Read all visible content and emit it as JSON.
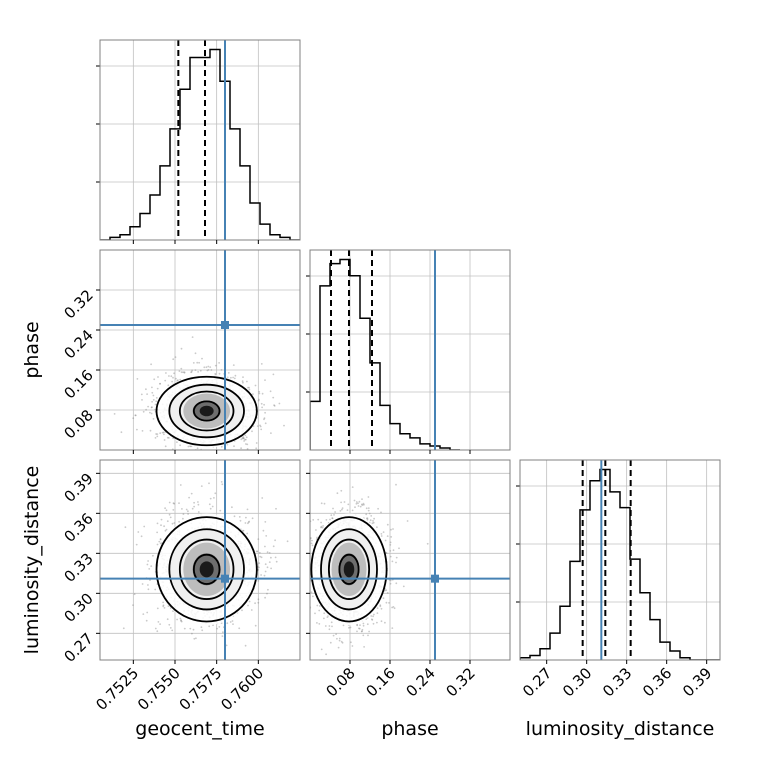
{
  "chart_data": {
    "type": "corner",
    "title": "",
    "parameters": [
      {
        "name": "geocent_time",
        "label": "geocent_time",
        "range": [
          0.7505,
          0.7625
        ],
        "ticks": [
          0.7525,
          0.755,
          0.7575,
          0.76
        ],
        "tick_labels": [
          "0.7525",
          "0.7550",
          "0.7575",
          "0.7600"
        ],
        "truth": 0.758,
        "quantiles": [
          0.7552,
          0.7568,
          0.758
        ],
        "histogram": {
          "edges": [
            0.7505,
            0.7511,
            0.7517,
            0.7523,
            0.7529,
            0.7535,
            0.7541,
            0.7547,
            0.7553,
            0.7559,
            0.7565,
            0.7571,
            0.7577,
            0.7583,
            0.7589,
            0.7595,
            0.7601,
            0.7607,
            0.7613,
            0.7619,
            0.7625
          ],
          "counts": [
            0,
            1,
            2,
            5,
            10,
            17,
            28,
            42,
            57,
            69,
            69,
            72,
            60,
            42,
            28,
            14,
            6,
            2,
            1,
            0
          ]
        }
      },
      {
        "name": "phase",
        "label": "phase",
        "range": [
          0,
          0.4
        ],
        "ticks": [
          0.08,
          0.16,
          0.24,
          0.32
        ],
        "tick_labels": [
          "0.08",
          "0.16",
          "0.24",
          "0.32"
        ],
        "truth": 0.25,
        "quantiles": [
          0.042,
          0.078,
          0.124
        ],
        "histogram": {
          "edges": [
            0.0,
            0.02,
            0.04,
            0.06,
            0.08,
            0.1,
            0.12,
            0.14,
            0.16,
            0.18,
            0.2,
            0.22,
            0.24,
            0.26,
            0.28,
            0.3
          ],
          "counts": [
            24,
            81,
            92,
            94,
            86,
            65,
            43,
            22,
            13,
            8,
            6,
            3,
            2,
            1,
            0
          ]
        }
      },
      {
        "name": "luminosity_distance",
        "label": "luminosity_distance",
        "range": [
          0.25,
          0.4
        ],
        "ticks": [
          0.27,
          0.3,
          0.33,
          0.36,
          0.39
        ],
        "tick_labels": [
          "0.27",
          "0.30",
          "0.33",
          "0.36",
          "0.39"
        ],
        "truth": 0.311,
        "quantiles": [
          0.297,
          0.314,
          0.333
        ],
        "histogram": {
          "edges": [
            0.25,
            0.2575,
            0.265,
            0.2725,
            0.28,
            0.2875,
            0.295,
            0.3025,
            0.31,
            0.3175,
            0.325,
            0.3325,
            0.34,
            0.3475,
            0.355,
            0.3625,
            0.37,
            0.3775,
            0.385,
            0.3925,
            0.4
          ],
          "counts": [
            1,
            2,
            5,
            12,
            24,
            44,
            67,
            80,
            85,
            75,
            68,
            45,
            30,
            18,
            8,
            4,
            1,
            0,
            0,
            0
          ]
        }
      }
    ],
    "pair_panels": [
      {
        "x": "geocent_time",
        "y": "phase",
        "center": [
          0.7569,
          0.078
        ],
        "sigma": [
          0.0014,
          0.035
        ]
      },
      {
        "x": "geocent_time",
        "y": "luminosity_distance",
        "center": [
          0.7569,
          0.318
        ],
        "sigma": [
          0.0014,
          0.02
        ]
      },
      {
        "x": "phase",
        "y": "luminosity_distance",
        "center": [
          0.078,
          0.318
        ],
        "sigma": [
          0.035,
          0.02
        ]
      }
    ],
    "grid": true,
    "colors": {
      "truth": "#4682b4",
      "hist": "#000000",
      "grid": "#c0c0c0",
      "frame": "#808080"
    }
  }
}
